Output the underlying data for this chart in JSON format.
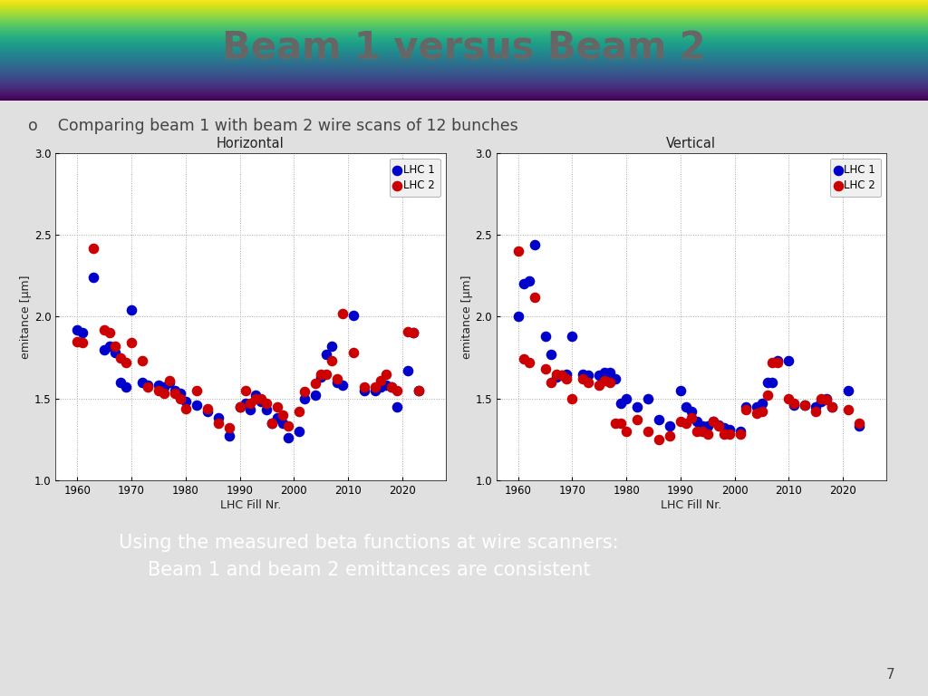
{
  "title": "Beam 1 versus Beam 2",
  "subtitle": "Comparing beam 1 with beam 2 wire scans of 12 bunches",
  "bullet": "o",
  "bg_top": "#ffffff",
  "bg_slide": "#e8e8e8",
  "header_gradient_start": "#ffffff",
  "header_gradient_end": "#cccccc",
  "plot_bg": "#ffffff",
  "footer_text_line1": "Using the measured beta functions at wire scanners:",
  "footer_text_line2": "Beam 1 and beam 2 emittances are consistent",
  "footer_bg": "#808080",
  "footer_text_color": "#ffffff",
  "page_number": "7",
  "ylim": [
    1.0,
    3.0
  ],
  "yticks": [
    1.0,
    1.5,
    2.0,
    2.5,
    3.0
  ],
  "ylabel": "emitance [µm]",
  "xlabel": "LHC Fill Nr.",
  "xlim": [
    1956,
    2028
  ],
  "xticks": [
    1960,
    1970,
    1980,
    1990,
    2000,
    2010,
    2020
  ],
  "color_b1": "#0000cc",
  "color_b2": "#cc0000",
  "marker_size": 70,
  "horiz_title": "Horizontal",
  "vert_title": "Vertical",
  "horiz_b1_x": [
    1960,
    1961,
    1963,
    1965,
    1966,
    1967,
    1968,
    1969,
    1970,
    1972,
    1973,
    1975,
    1976,
    1977,
    1978,
    1979,
    1980,
    1982,
    1984,
    1986,
    1988,
    1990,
    1991,
    1992,
    1993,
    1994,
    1995,
    1996,
    1997,
    1998,
    1999,
    2001,
    2002,
    2004,
    2005,
    2006,
    2007,
    2008,
    2009,
    2011,
    2013,
    2015,
    2016,
    2017,
    2018,
    2019,
    2021,
    2022,
    2023
  ],
  "horiz_b1_y": [
    1.92,
    1.9,
    2.24,
    1.8,
    1.82,
    1.78,
    1.6,
    1.57,
    2.04,
    1.6,
    1.58,
    1.58,
    1.57,
    1.6,
    1.55,
    1.53,
    1.48,
    1.46,
    1.42,
    1.38,
    1.27,
    1.45,
    1.47,
    1.43,
    1.52,
    1.48,
    1.43,
    1.35,
    1.38,
    1.35,
    1.26,
    1.3,
    1.5,
    1.52,
    1.63,
    1.77,
    1.82,
    1.6,
    1.58,
    2.01,
    1.55,
    1.55,
    1.57,
    1.58,
    1.57,
    1.45,
    1.67,
    1.9,
    1.55
  ],
  "horiz_b2_x": [
    1960,
    1961,
    1963,
    1965,
    1966,
    1967,
    1968,
    1969,
    1970,
    1972,
    1973,
    1975,
    1976,
    1977,
    1978,
    1979,
    1980,
    1982,
    1984,
    1986,
    1988,
    1990,
    1991,
    1992,
    1993,
    1994,
    1995,
    1996,
    1997,
    1998,
    1999,
    2001,
    2002,
    2004,
    2005,
    2006,
    2007,
    2008,
    2009,
    2011,
    2013,
    2015,
    2016,
    2017,
    2018,
    2019,
    2021,
    2022,
    2023
  ],
  "horiz_b2_y": [
    1.85,
    1.84,
    2.42,
    1.92,
    1.9,
    1.82,
    1.75,
    1.72,
    1.84,
    1.73,
    1.57,
    1.55,
    1.53,
    1.61,
    1.53,
    1.5,
    1.44,
    1.55,
    1.44,
    1.35,
    1.32,
    1.45,
    1.55,
    1.47,
    1.5,
    1.5,
    1.47,
    1.35,
    1.45,
    1.4,
    1.33,
    1.42,
    1.54,
    1.59,
    1.65,
    1.65,
    1.73,
    1.62,
    2.02,
    1.78,
    1.57,
    1.57,
    1.61,
    1.65,
    1.57,
    1.55,
    1.91,
    1.9,
    1.55
  ],
  "vert_b1_x": [
    1960,
    1961,
    1962,
    1963,
    1965,
    1966,
    1967,
    1968,
    1969,
    1970,
    1972,
    1973,
    1975,
    1976,
    1977,
    1978,
    1979,
    1980,
    1982,
    1984,
    1986,
    1988,
    1990,
    1991,
    1992,
    1993,
    1994,
    1995,
    1996,
    1997,
    1998,
    1999,
    2001,
    2002,
    2004,
    2005,
    2006,
    2007,
    2008,
    2010,
    2011,
    2013,
    2015,
    2016,
    2017,
    2018,
    2021,
    2023
  ],
  "vert_b1_y": [
    2.0,
    2.2,
    2.22,
    2.44,
    1.88,
    1.77,
    1.63,
    1.64,
    1.65,
    1.88,
    1.65,
    1.64,
    1.64,
    1.66,
    1.66,
    1.62,
    1.47,
    1.5,
    1.45,
    1.5,
    1.37,
    1.33,
    1.55,
    1.45,
    1.42,
    1.36,
    1.33,
    1.33,
    1.36,
    1.34,
    1.32,
    1.31,
    1.3,
    1.45,
    1.45,
    1.47,
    1.6,
    1.6,
    1.73,
    1.73,
    1.46,
    1.46,
    1.45,
    1.48,
    1.5,
    1.45,
    1.55,
    1.33
  ],
  "vert_b2_x": [
    1960,
    1961,
    1962,
    1963,
    1965,
    1966,
    1967,
    1968,
    1969,
    1970,
    1972,
    1973,
    1975,
    1976,
    1977,
    1978,
    1979,
    1980,
    1982,
    1984,
    1986,
    1988,
    1990,
    1991,
    1992,
    1993,
    1994,
    1995,
    1996,
    1997,
    1998,
    1999,
    2001,
    2002,
    2004,
    2005,
    2006,
    2007,
    2008,
    2010,
    2011,
    2013,
    2015,
    2016,
    2017,
    2018,
    2021,
    2023
  ],
  "vert_b2_y": [
    2.4,
    1.74,
    1.72,
    2.12,
    1.68,
    1.6,
    1.65,
    1.64,
    1.62,
    1.5,
    1.62,
    1.6,
    1.58,
    1.61,
    1.6,
    1.35,
    1.35,
    1.3,
    1.37,
    1.3,
    1.25,
    1.27,
    1.36,
    1.35,
    1.38,
    1.3,
    1.3,
    1.28,
    1.36,
    1.33,
    1.28,
    1.28,
    1.28,
    1.43,
    1.41,
    1.42,
    1.52,
    1.72,
    1.72,
    1.5,
    1.47,
    1.46,
    1.42,
    1.5,
    1.49,
    1.45,
    1.43,
    1.35
  ]
}
